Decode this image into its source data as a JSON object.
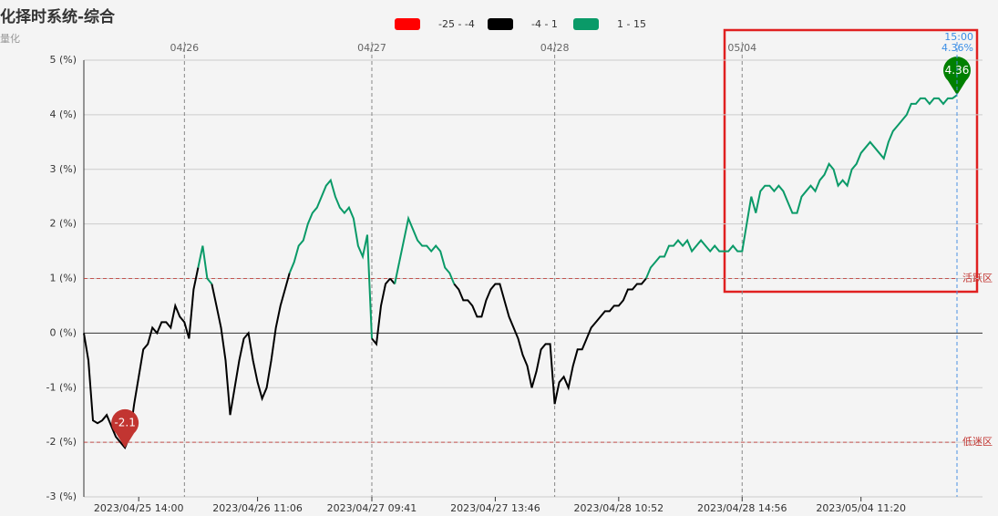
{
  "chart_data": {
    "type": "line",
    "title": "化择时系统-综合",
    "subtitle": "量化",
    "pieces": [
      {
        "label": "-25 - -4",
        "min": -25,
        "max": -4,
        "color": "#ff0000"
      },
      {
        "label": "-4 - 1",
        "min": -4,
        "max": 1,
        "color": "#000000"
      },
      {
        "label": "1 - 15",
        "min": 1,
        "max": 15,
        "color": "#0a9a68"
      }
    ],
    "categories": [
      null,
      null,
      null,
      null,
      null,
      null,
      null,
      null,
      null,
      null,
      null,
      null,
      "2023/04/25 14:00",
      null,
      null,
      null,
      null,
      null,
      null,
      null,
      null,
      null,
      null,
      null,
      null,
      null,
      null,
      null,
      null,
      null,
      null,
      null,
      null,
      null,
      null,
      null,
      null,
      null,
      "2023/04/26 11:06",
      null,
      null,
      null,
      null,
      null,
      null,
      null,
      null,
      null,
      null,
      null,
      null,
      null,
      null,
      null,
      null,
      null,
      null,
      null,
      null,
      null,
      null,
      null,
      null,
      "2023/04/27 09:41",
      null,
      null,
      null,
      null,
      null,
      null,
      null,
      null,
      null,
      null,
      null,
      null,
      null,
      null,
      null,
      null,
      null,
      null,
      null,
      null,
      null,
      null,
      null,
      null,
      null,
      null,
      "2023/04/27 13:46",
      null,
      null,
      null,
      null,
      null,
      null,
      null,
      null,
      null,
      null,
      null,
      null,
      null,
      null,
      null,
      null,
      null,
      null,
      null,
      null,
      null,
      null,
      null,
      null,
      null,
      null,
      "2023/04/28 10:52",
      null,
      null,
      null,
      null,
      null,
      null,
      null,
      null,
      null,
      null,
      null,
      null,
      null,
      null,
      null,
      null,
      null,
      null,
      null,
      null,
      null,
      null,
      null,
      null,
      null,
      null,
      "2023/04/28 14:56",
      null,
      null,
      null,
      null,
      null,
      null,
      null,
      null,
      null,
      null,
      null,
      null,
      null,
      null,
      null,
      null,
      null,
      null,
      null,
      null,
      null,
      null,
      null,
      null,
      null,
      "2023/05/04 11:20",
      null,
      null,
      null,
      null,
      null,
      null,
      null,
      null,
      null,
      null,
      null,
      null,
      null,
      null,
      null,
      null,
      null,
      null,
      null,
      null,
      null
    ],
    "day_categories": [
      null,
      null,
      null,
      null,
      null,
      null,
      null,
      null,
      null,
      null,
      null,
      null,
      null,
      null,
      null,
      null,
      null,
      null,
      null,
      null,
      null,
      null,
      "04/26",
      null,
      null,
      null,
      null,
      null,
      null,
      null,
      null,
      null,
      null,
      null,
      null,
      null,
      null,
      null,
      null,
      null,
      null,
      null,
      null,
      null,
      null,
      null,
      null,
      null,
      null,
      null,
      null,
      null,
      null,
      null,
      null,
      null,
      null,
      null,
      null,
      null,
      null,
      null,
      null,
      "04/27",
      null,
      null,
      null,
      null,
      null,
      null,
      null,
      null,
      null,
      null,
      null,
      null,
      null,
      null,
      null,
      null,
      null,
      null,
      null,
      null,
      null,
      null,
      null,
      null,
      null,
      null,
      null,
      null,
      null,
      null,
      null,
      null,
      null,
      null,
      null,
      null,
      null,
      null,
      null,
      "04/28",
      null,
      null,
      null,
      null,
      null,
      null,
      null,
      null,
      null,
      null,
      null,
      null,
      null,
      null,
      null,
      null,
      null,
      null,
      null,
      null,
      null,
      null,
      null,
      null,
      null,
      null,
      null,
      null,
      null,
      null,
      null,
      null,
      null,
      null,
      null,
      null,
      null,
      null,
      null,
      null,
      "05/04",
      null,
      null,
      null,
      null,
      null,
      null,
      null,
      null,
      null,
      null,
      null,
      null,
      null,
      null,
      null,
      null,
      null,
      null,
      null,
      null,
      null,
      null,
      null,
      null,
      null,
      null,
      null,
      null,
      null,
      null,
      null,
      null,
      null,
      null,
      null,
      null,
      null,
      null,
      null,
      null,
      null,
      null,
      null,
      null,
      null,
      null,
      null
    ],
    "series": [
      {
        "values": [
          0,
          -0.5,
          -1.6,
          -1.65,
          -1.6,
          -1.5,
          -1.7,
          -1.9,
          -2.0,
          -2.1,
          -1.9,
          -1.3,
          -0.8,
          -0.3,
          -0.2,
          0.1,
          0.0,
          0.2,
          0.2,
          0.1,
          0.5,
          0.3,
          0.2,
          -0.1,
          0.8,
          1.2,
          1.6,
          1.0,
          0.9,
          0.5,
          0.1,
          -0.5,
          -1.5,
          -1.0,
          -0.5,
          -0.1,
          0.0,
          -0.5,
          -0.9,
          -1.2,
          -1.0,
          -0.5,
          0.1,
          0.5,
          0.8,
          1.1,
          1.3,
          1.6,
          1.7,
          2.0,
          2.2,
          2.3,
          2.5,
          2.7,
          2.8,
          2.5,
          2.3,
          2.2,
          2.3,
          2.1,
          1.6,
          1.4,
          1.8,
          -0.1,
          -0.2,
          0.5,
          0.9,
          1.0,
          0.9,
          1.3,
          1.7,
          2.1,
          1.9,
          1.7,
          1.6,
          1.6,
          1.5,
          1.6,
          1.5,
          1.2,
          1.1,
          0.9,
          0.8,
          0.6,
          0.6,
          0.5,
          0.3,
          0.3,
          0.6,
          0.8,
          0.9,
          0.9,
          0.6,
          0.3,
          0.1,
          -0.1,
          -0.4,
          -0.6,
          -1.0,
          -0.7,
          -0.3,
          -0.2,
          -0.2,
          -1.3,
          -0.9,
          -0.8,
          -1.0,
          -0.6,
          -0.3,
          -0.3,
          -0.1,
          0.1,
          0.2,
          0.3,
          0.4,
          0.4,
          0.5,
          0.5,
          0.6,
          0.8,
          0.8,
          0.9,
          0.9,
          1.0,
          1.2,
          1.3,
          1.4,
          1.4,
          1.6,
          1.6,
          1.7,
          1.6,
          1.7,
          1.5,
          1.6,
          1.7,
          1.6,
          1.5,
          1.6,
          1.5,
          1.5,
          1.5,
          1.6,
          1.5,
          1.5,
          2.0,
          2.5,
          2.2,
          2.6,
          2.7,
          2.7,
          2.6,
          2.7,
          2.6,
          2.4,
          2.2,
          2.2,
          2.5,
          2.6,
          2.7,
          2.6,
          2.8,
          2.9,
          3.1,
          3.0,
          2.7,
          2.8,
          2.7,
          3.0,
          3.1,
          3.3,
          3.4,
          3.5,
          3.4,
          3.3,
          3.2,
          3.5,
          3.7,
          3.8,
          3.9,
          4.0,
          4.2,
          4.2,
          4.3,
          4.3,
          4.2,
          4.3,
          4.3,
          4.2,
          4.3,
          4.3,
          4.36
        ]
      }
    ],
    "ylim": [
      -3,
      5
    ],
    "yticks": [
      {
        "value": -3,
        "label": "-3 (%)"
      },
      {
        "value": -2,
        "label": "-2 (%)"
      },
      {
        "value": -1,
        "label": "-1 (%)"
      },
      {
        "value": 0,
        "label": "0 (%)"
      },
      {
        "value": 1,
        "label": "1 (%)"
      },
      {
        "value": 2,
        "label": "2 (%)"
      },
      {
        "value": 3,
        "label": "3 (%)"
      },
      {
        "value": 4,
        "label": "4 (%)"
      },
      {
        "value": 5,
        "label": "5 (%)"
      }
    ],
    "grid": true,
    "mark_lines": [
      {
        "value": 1,
        "label": "活跃区"
      },
      {
        "value": -2,
        "label": "低迷区"
      }
    ],
    "pointer_time": "15:00",
    "pointer_label": "4.36%"
  }
}
